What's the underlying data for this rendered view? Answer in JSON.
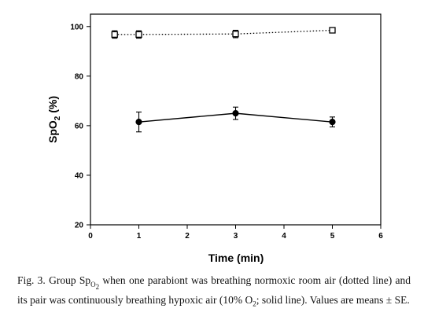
{
  "chart_data": {
    "type": "line",
    "xlabel": "Time (min)",
    "ylabel_main": "SpO",
    "ylabel_sub": "2",
    "ylabel_suffix": " (%)",
    "xlim": [
      0,
      6
    ],
    "ylim": [
      20,
      105
    ],
    "xticks": [
      0,
      1,
      2,
      3,
      4,
      5,
      6
    ],
    "yticks": [
      20,
      40,
      60,
      80,
      100
    ],
    "grid": false,
    "series": [
      {
        "style": "dotted",
        "marker": "open-square",
        "x": [
          0.5,
          1,
          3,
          5
        ],
        "y": [
          96.8,
          96.8,
          97.0,
          98.5
        ],
        "err": [
          1.5,
          1.5,
          1.5,
          0.5
        ]
      },
      {
        "style": "solid",
        "marker": "filled-circle",
        "x": [
          1,
          3,
          5
        ],
        "y": [
          61.5,
          65.0,
          61.5
        ],
        "err": [
          4.0,
          2.5,
          2.0
        ]
      }
    ]
  },
  "caption": {
    "prefix": "Fig. 3. Group Sp",
    "sub1": "O",
    "sub2": "2",
    "mid": " when one parabiont was breathing normoxic room air (dotted line) and its pair was continuously breathing hypoxic air (10% O",
    "o2sub": "2",
    "end": "; solid line). Values are means ± SE."
  }
}
